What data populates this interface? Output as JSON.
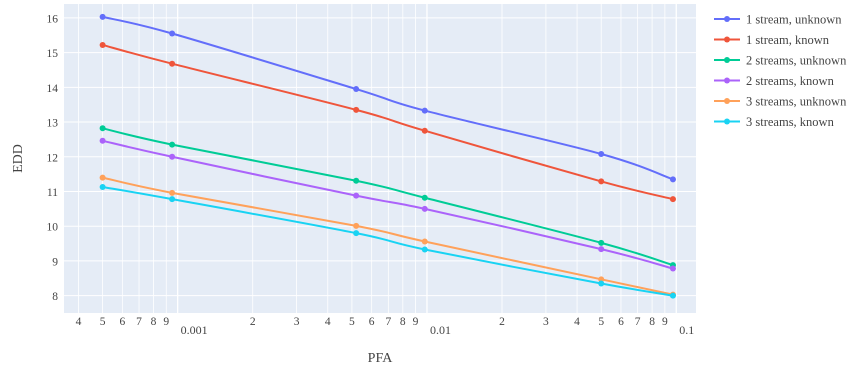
{
  "chart_data": {
    "type": "line",
    "xlabel": "PFA",
    "ylabel": "EDD",
    "xscale": "log",
    "xlim": [
      0.00035,
      0.12
    ],
    "ylim": [
      7.5,
      16.4
    ],
    "grid": true,
    "legend_position": "right",
    "background": "#e5ecf6",
    "x_ticks": [
      {
        "value": 0.0004,
        "label": "4"
      },
      {
        "value": 0.0005,
        "label": "5"
      },
      {
        "value": 0.0006,
        "label": "6"
      },
      {
        "value": 0.0007,
        "label": "7"
      },
      {
        "value": 0.0008,
        "label": "8"
      },
      {
        "value": 0.0009,
        "label": "9"
      },
      {
        "value": 0.001,
        "label": "0.001",
        "major": true
      },
      {
        "value": 0.002,
        "label": "2"
      },
      {
        "value": 0.003,
        "label": "3"
      },
      {
        "value": 0.004,
        "label": "4"
      },
      {
        "value": 0.005,
        "label": "5"
      },
      {
        "value": 0.006,
        "label": "6"
      },
      {
        "value": 0.007,
        "label": "7"
      },
      {
        "value": 0.008,
        "label": "8"
      },
      {
        "value": 0.009,
        "label": "9"
      },
      {
        "value": 0.01,
        "label": "0.01",
        "major": true
      },
      {
        "value": 0.02,
        "label": "2"
      },
      {
        "value": 0.03,
        "label": "3"
      },
      {
        "value": 0.04,
        "label": "4"
      },
      {
        "value": 0.05,
        "label": "5"
      },
      {
        "value": 0.06,
        "label": "6"
      },
      {
        "value": 0.07,
        "label": "7"
      },
      {
        "value": 0.08,
        "label": "8"
      },
      {
        "value": 0.09,
        "label": "9"
      },
      {
        "value": 0.1,
        "label": "0.1",
        "major": true
      }
    ],
    "y_ticks": [
      8,
      9,
      10,
      11,
      12,
      13,
      14,
      15,
      16
    ],
    "x": [
      0.0005,
      0.00095,
      0.0052,
      0.0098,
      0.05,
      0.097
    ],
    "series": [
      {
        "name": "1 stream, unknown",
        "color": "#636efa",
        "values": [
          16.03,
          15.55,
          13.95,
          13.33,
          12.08,
          11.35
        ]
      },
      {
        "name": "1 stream, known",
        "color": "#ef553b",
        "values": [
          15.22,
          14.68,
          13.35,
          12.75,
          11.29,
          10.78
        ]
      },
      {
        "name": "2 streams, unknown",
        "color": "#00cc96",
        "values": [
          12.82,
          12.35,
          11.31,
          10.82,
          9.52,
          8.88
        ]
      },
      {
        "name": "2 streams, known",
        "color": "#ab63fa",
        "values": [
          12.46,
          12.0,
          10.88,
          10.5,
          9.34,
          8.78
        ]
      },
      {
        "name": "3 streams, unknown",
        "color": "#ffa15a",
        "values": [
          11.4,
          10.96,
          10.01,
          9.56,
          8.47,
          8.03
        ]
      },
      {
        "name": "3 streams, known",
        "color": "#19d3f3",
        "values": [
          11.13,
          10.78,
          9.8,
          9.33,
          8.35,
          8.0
        ]
      }
    ]
  }
}
